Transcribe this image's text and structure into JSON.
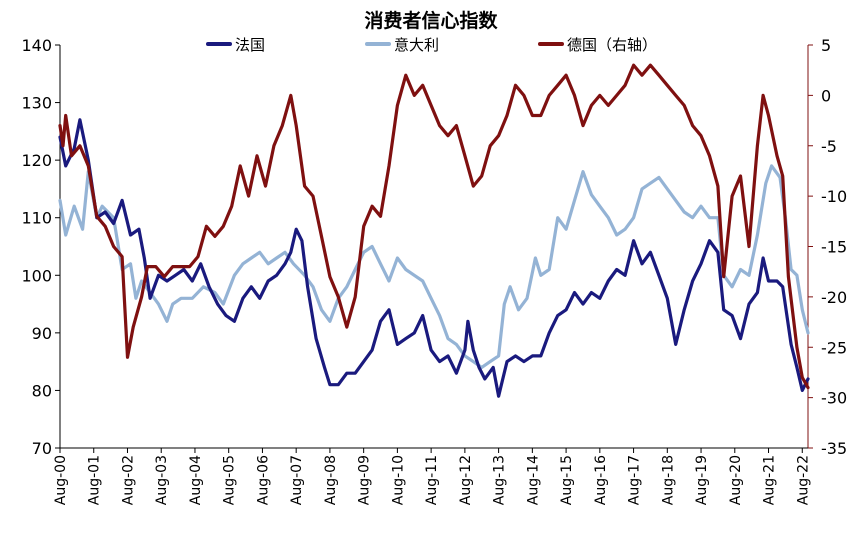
{
  "chart_data": {
    "type": "line",
    "title": "消费者信心指数",
    "x_tick_labels": [
      "Aug-00",
      "Aug-01",
      "Aug-02",
      "Aug-03",
      "Aug-04",
      "Aug-05",
      "Aug-06",
      "Aug-07",
      "Aug-08",
      "Aug-09",
      "Aug-10",
      "Aug-11",
      "Aug-12",
      "Aug-13",
      "Aug-14",
      "Aug-15",
      "Aug-16",
      "Aug-17",
      "Aug-18",
      "Aug-19",
      "Aug-20",
      "Aug-21",
      "Aug-22"
    ],
    "x_range": [
      2000.58,
      2022.75
    ],
    "y_left": {
      "min": 70,
      "max": 140,
      "step": 10,
      "ticks": [
        "70",
        "80",
        "90",
        "100",
        "110",
        "120",
        "130",
        "140"
      ]
    },
    "y_right": {
      "min": -35,
      "max": 5,
      "step": 5,
      "ticks": [
        "-35",
        "-30",
        "-25",
        "-20",
        "-15",
        "-10",
        "-5",
        "0",
        "5"
      ],
      "color": "#7f1010"
    },
    "grid": false,
    "legend_position": "top",
    "series": [
      {
        "name": "法国",
        "color": "#1a1a7e",
        "axis": "left",
        "points": [
          [
            2000.58,
            124
          ],
          [
            2000.75,
            119
          ],
          [
            2001.0,
            122
          ],
          [
            2001.17,
            127
          ],
          [
            2001.42,
            120
          ],
          [
            2001.67,
            110
          ],
          [
            2001.92,
            111
          ],
          [
            2002.17,
            109
          ],
          [
            2002.42,
            113
          ],
          [
            2002.67,
            107
          ],
          [
            2002.92,
            108
          ],
          [
            2003.08,
            103
          ],
          [
            2003.25,
            96
          ],
          [
            2003.5,
            100
          ],
          [
            2003.75,
            99
          ],
          [
            2004.0,
            100
          ],
          [
            2004.25,
            101
          ],
          [
            2004.5,
            99
          ],
          [
            2004.75,
            102
          ],
          [
            2005.0,
            98
          ],
          [
            2005.25,
            95
          ],
          [
            2005.5,
            93
          ],
          [
            2005.75,
            92
          ],
          [
            2006.0,
            96
          ],
          [
            2006.25,
            98
          ],
          [
            2006.5,
            96
          ],
          [
            2006.75,
            99
          ],
          [
            2007.0,
            100
          ],
          [
            2007.25,
            102
          ],
          [
            2007.42,
            104
          ],
          [
            2007.58,
            108
          ],
          [
            2007.75,
            106
          ],
          [
            2007.92,
            98
          ],
          [
            2008.17,
            89
          ],
          [
            2008.42,
            84
          ],
          [
            2008.58,
            81
          ],
          [
            2008.83,
            81
          ],
          [
            2009.08,
            83
          ],
          [
            2009.33,
            83
          ],
          [
            2009.58,
            85
          ],
          [
            2009.83,
            87
          ],
          [
            2010.08,
            92
          ],
          [
            2010.33,
            94
          ],
          [
            2010.58,
            88
          ],
          [
            2010.83,
            89
          ],
          [
            2011.08,
            90
          ],
          [
            2011.33,
            93
          ],
          [
            2011.58,
            87
          ],
          [
            2011.83,
            85
          ],
          [
            2012.08,
            86
          ],
          [
            2012.33,
            83
          ],
          [
            2012.58,
            87
          ],
          [
            2012.67,
            92
          ],
          [
            2012.83,
            87
          ],
          [
            2013.0,
            84
          ],
          [
            2013.17,
            82
          ],
          [
            2013.42,
            84
          ],
          [
            2013.58,
            79
          ],
          [
            2013.83,
            85
          ],
          [
            2014.08,
            86
          ],
          [
            2014.33,
            85
          ],
          [
            2014.58,
            86
          ],
          [
            2014.83,
            86
          ],
          [
            2015.08,
            90
          ],
          [
            2015.33,
            93
          ],
          [
            2015.58,
            94
          ],
          [
            2015.83,
            97
          ],
          [
            2016.08,
            95
          ],
          [
            2016.33,
            97
          ],
          [
            2016.58,
            96
          ],
          [
            2016.83,
            99
          ],
          [
            2017.08,
            101
          ],
          [
            2017.33,
            100
          ],
          [
            2017.58,
            106
          ],
          [
            2017.83,
            102
          ],
          [
            2018.08,
            104
          ],
          [
            2018.33,
            100
          ],
          [
            2018.58,
            96
          ],
          [
            2018.83,
            88
          ],
          [
            2019.08,
            94
          ],
          [
            2019.33,
            99
          ],
          [
            2019.58,
            102
          ],
          [
            2019.83,
            106
          ],
          [
            2020.08,
            104
          ],
          [
            2020.25,
            94
          ],
          [
            2020.5,
            93
          ],
          [
            2020.75,
            89
          ],
          [
            2021.0,
            95
          ],
          [
            2021.25,
            97
          ],
          [
            2021.42,
            103
          ],
          [
            2021.58,
            99
          ],
          [
            2021.83,
            99
          ],
          [
            2022.0,
            98
          ],
          [
            2022.25,
            88
          ],
          [
            2022.42,
            84
          ],
          [
            2022.58,
            80
          ],
          [
            2022.75,
            82
          ]
        ]
      },
      {
        "name": "意大利",
        "color": "#94b3d5",
        "axis": "left",
        "points": [
          [
            2000.58,
            113
          ],
          [
            2000.75,
            107
          ],
          [
            2001.0,
            112
          ],
          [
            2001.25,
            108
          ],
          [
            2001.42,
            118
          ],
          [
            2001.67,
            110
          ],
          [
            2001.83,
            112
          ],
          [
            2002.17,
            110
          ],
          [
            2002.42,
            101
          ],
          [
            2002.67,
            102
          ],
          [
            2002.83,
            96
          ],
          [
            2003.0,
            99
          ],
          [
            2003.25,
            97
          ],
          [
            2003.5,
            95
          ],
          [
            2003.75,
            92
          ],
          [
            2003.92,
            95
          ],
          [
            2004.17,
            96
          ],
          [
            2004.5,
            96
          ],
          [
            2004.83,
            98
          ],
          [
            2005.17,
            97
          ],
          [
            2005.42,
            95
          ],
          [
            2005.75,
            100
          ],
          [
            2006.0,
            102
          ],
          [
            2006.25,
            103
          ],
          [
            2006.5,
            104
          ],
          [
            2006.75,
            102
          ],
          [
            2007.0,
            103
          ],
          [
            2007.25,
            104
          ],
          [
            2007.5,
            102
          ],
          [
            2007.83,
            100
          ],
          [
            2008.08,
            98
          ],
          [
            2008.33,
            94
          ],
          [
            2008.58,
            92
          ],
          [
            2008.83,
            96
          ],
          [
            2009.08,
            98
          ],
          [
            2009.33,
            101
          ],
          [
            2009.58,
            104
          ],
          [
            2009.83,
            105
          ],
          [
            2010.08,
            102
          ],
          [
            2010.33,
            99
          ],
          [
            2010.58,
            103
          ],
          [
            2010.83,
            101
          ],
          [
            2011.08,
            100
          ],
          [
            2011.33,
            99
          ],
          [
            2011.58,
            96
          ],
          [
            2011.83,
            93
          ],
          [
            2012.08,
            89
          ],
          [
            2012.33,
            88
          ],
          [
            2012.58,
            86
          ],
          [
            2012.83,
            85
          ],
          [
            2013.08,
            84
          ],
          [
            2013.33,
            85
          ],
          [
            2013.58,
            86
          ],
          [
            2013.75,
            95
          ],
          [
            2013.92,
            98
          ],
          [
            2014.17,
            94
          ],
          [
            2014.42,
            96
          ],
          [
            2014.67,
            103
          ],
          [
            2014.83,
            100
          ],
          [
            2015.08,
            101
          ],
          [
            2015.33,
            110
          ],
          [
            2015.58,
            108
          ],
          [
            2015.83,
            113
          ],
          [
            2016.08,
            118
          ],
          [
            2016.33,
            114
          ],
          [
            2016.58,
            112
          ],
          [
            2016.83,
            110
          ],
          [
            2017.08,
            107
          ],
          [
            2017.33,
            108
          ],
          [
            2017.58,
            110
          ],
          [
            2017.83,
            115
          ],
          [
            2018.08,
            116
          ],
          [
            2018.33,
            117
          ],
          [
            2018.58,
            115
          ],
          [
            2018.83,
            113
          ],
          [
            2019.08,
            111
          ],
          [
            2019.33,
            110
          ],
          [
            2019.58,
            112
          ],
          [
            2019.83,
            110
          ],
          [
            2020.08,
            110
          ],
          [
            2020.25,
            100
          ],
          [
            2020.5,
            98
          ],
          [
            2020.75,
            101
          ],
          [
            2021.0,
            100
          ],
          [
            2021.25,
            107
          ],
          [
            2021.5,
            116
          ],
          [
            2021.67,
            119
          ],
          [
            2021.92,
            117
          ],
          [
            2022.08,
            110
          ],
          [
            2022.25,
            101
          ],
          [
            2022.42,
            100
          ],
          [
            2022.58,
            94
          ],
          [
            2022.75,
            90
          ]
        ]
      },
      {
        "name": "德国（右轴）",
        "color": "#7f1010",
        "axis": "right",
        "points": [
          [
            2000.58,
            -3
          ],
          [
            2000.67,
            -5
          ],
          [
            2000.75,
            -2
          ],
          [
            2000.92,
            -6
          ],
          [
            2001.17,
            -5
          ],
          [
            2001.42,
            -7
          ],
          [
            2001.67,
            -12
          ],
          [
            2001.92,
            -13
          ],
          [
            2002.17,
            -15
          ],
          [
            2002.42,
            -16
          ],
          [
            2002.58,
            -26
          ],
          [
            2002.75,
            -23
          ],
          [
            2003.0,
            -20
          ],
          [
            2003.17,
            -17
          ],
          [
            2003.42,
            -17
          ],
          [
            2003.67,
            -18
          ],
          [
            2003.92,
            -17
          ],
          [
            2004.17,
            -17
          ],
          [
            2004.42,
            -17
          ],
          [
            2004.67,
            -16
          ],
          [
            2004.92,
            -13
          ],
          [
            2005.17,
            -14
          ],
          [
            2005.42,
            -13
          ],
          [
            2005.67,
            -11
          ],
          [
            2005.92,
            -7
          ],
          [
            2006.17,
            -10
          ],
          [
            2006.42,
            -6
          ],
          [
            2006.67,
            -9
          ],
          [
            2006.92,
            -5
          ],
          [
            2007.17,
            -3
          ],
          [
            2007.42,
            0
          ],
          [
            2007.58,
            -3
          ],
          [
            2007.83,
            -9
          ],
          [
            2008.08,
            -10
          ],
          [
            2008.33,
            -14
          ],
          [
            2008.58,
            -18
          ],
          [
            2008.83,
            -20
          ],
          [
            2009.08,
            -23
          ],
          [
            2009.33,
            -20
          ],
          [
            2009.58,
            -13
          ],
          [
            2009.83,
            -11
          ],
          [
            2010.08,
            -12
          ],
          [
            2010.33,
            -7
          ],
          [
            2010.58,
            -1
          ],
          [
            2010.83,
            2
          ],
          [
            2011.08,
            0
          ],
          [
            2011.33,
            1
          ],
          [
            2011.58,
            -1
          ],
          [
            2011.83,
            -3
          ],
          [
            2012.08,
            -4
          ],
          [
            2012.33,
            -3
          ],
          [
            2012.58,
            -6
          ],
          [
            2012.83,
            -9
          ],
          [
            2013.08,
            -8
          ],
          [
            2013.33,
            -5
          ],
          [
            2013.58,
            -4
          ],
          [
            2013.83,
            -2
          ],
          [
            2014.08,
            1
          ],
          [
            2014.33,
            0
          ],
          [
            2014.58,
            -2
          ],
          [
            2014.83,
            -2
          ],
          [
            2015.08,
            0
          ],
          [
            2015.33,
            1
          ],
          [
            2015.58,
            2
          ],
          [
            2015.83,
            0
          ],
          [
            2016.08,
            -3
          ],
          [
            2016.33,
            -1
          ],
          [
            2016.58,
            0
          ],
          [
            2016.83,
            -1
          ],
          [
            2017.08,
            0
          ],
          [
            2017.33,
            1
          ],
          [
            2017.58,
            3
          ],
          [
            2017.83,
            2
          ],
          [
            2018.08,
            3
          ],
          [
            2018.33,
            2
          ],
          [
            2018.58,
            1
          ],
          [
            2018.83,
            0
          ],
          [
            2019.08,
            -1
          ],
          [
            2019.33,
            -3
          ],
          [
            2019.58,
            -4
          ],
          [
            2019.83,
            -6
          ],
          [
            2020.08,
            -9
          ],
          [
            2020.25,
            -18
          ],
          [
            2020.5,
            -10
          ],
          [
            2020.75,
            -8
          ],
          [
            2021.0,
            -15
          ],
          [
            2021.25,
            -5
          ],
          [
            2021.42,
            0
          ],
          [
            2021.58,
            -2
          ],
          [
            2021.83,
            -6
          ],
          [
            2022.0,
            -8
          ],
          [
            2022.17,
            -18
          ],
          [
            2022.42,
            -25
          ],
          [
            2022.58,
            -28
          ],
          [
            2022.75,
            -29
          ]
        ]
      }
    ]
  }
}
